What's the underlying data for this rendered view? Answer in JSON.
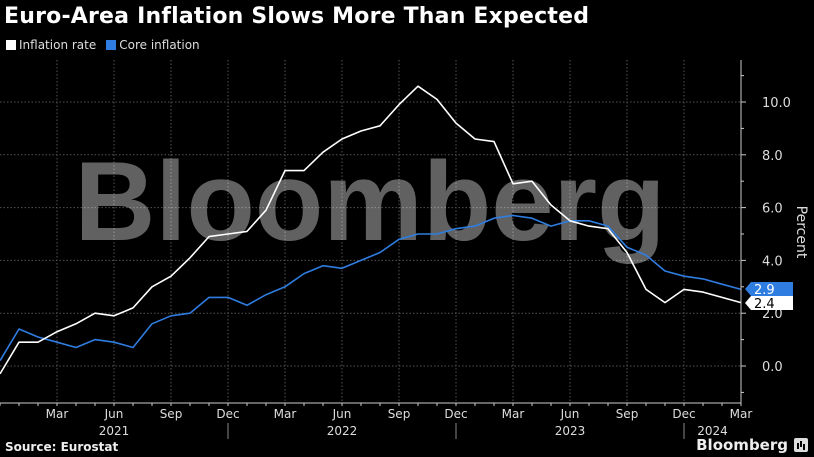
{
  "header": {
    "title": "Euro-Area Inflation Slows More Than Expected"
  },
  "legend": {
    "items": [
      {
        "label": "Inflation rate",
        "color": "#ffffff"
      },
      {
        "label": "Core inflation",
        "color": "#2f7de1"
      }
    ]
  },
  "axis": {
    "y_label": "Percent",
    "y_ticks": [
      "0.0",
      "2.0",
      "4.0",
      "6.0",
      "8.0",
      "10.0"
    ],
    "x_month_ticks": [
      "Mar",
      "Jun",
      "Sep",
      "Dec",
      "Mar",
      "Jun",
      "Sep",
      "Dec",
      "Mar",
      "Jun",
      "Sep",
      "Dec",
      "Mar"
    ],
    "x_year_labels": [
      "2021",
      "2022",
      "2023",
      "2024"
    ]
  },
  "end_labels": {
    "core": "2.9",
    "headline": "2.4"
  },
  "footer": {
    "source": "Source: Eurostat",
    "brand": "Bloomberg"
  },
  "watermark": "Bloomberg",
  "chart_data": {
    "type": "line",
    "title": "Euro-Area Inflation Slows More Than Expected",
    "xlabel": "",
    "ylabel": "Percent",
    "ylim": [
      -0.8,
      11.5
    ],
    "grid": true,
    "legend_position": "top-left",
    "x": [
      "2020-12",
      "2021-01",
      "2021-02",
      "2021-03",
      "2021-04",
      "2021-05",
      "2021-06",
      "2021-07",
      "2021-08",
      "2021-09",
      "2021-10",
      "2021-11",
      "2021-12",
      "2022-01",
      "2022-02",
      "2022-03",
      "2022-04",
      "2022-05",
      "2022-06",
      "2022-07",
      "2022-08",
      "2022-09",
      "2022-10",
      "2022-11",
      "2022-12",
      "2023-01",
      "2023-02",
      "2023-03",
      "2023-04",
      "2023-05",
      "2023-06",
      "2023-07",
      "2023-08",
      "2023-09",
      "2023-10",
      "2023-11",
      "2023-12",
      "2024-01",
      "2024-02",
      "2024-03"
    ],
    "series": [
      {
        "name": "Inflation rate",
        "color": "#ffffff",
        "values": [
          -0.3,
          0.9,
          0.9,
          1.3,
          1.6,
          2.0,
          1.9,
          2.2,
          3.0,
          3.4,
          4.1,
          4.9,
          5.0,
          5.1,
          5.9,
          7.4,
          7.4,
          8.1,
          8.6,
          8.9,
          9.1,
          9.9,
          10.6,
          10.1,
          9.2,
          8.6,
          8.5,
          6.9,
          7.0,
          6.1,
          5.5,
          5.3,
          5.2,
          4.3,
          2.9,
          2.4,
          2.9,
          2.8,
          2.6,
          2.4
        ]
      },
      {
        "name": "Core inflation",
        "color": "#2f7de1",
        "values": [
          0.2,
          1.4,
          1.1,
          0.9,
          0.7,
          1.0,
          0.9,
          0.7,
          1.6,
          1.9,
          2.0,
          2.6,
          2.6,
          2.3,
          2.7,
          3.0,
          3.5,
          3.8,
          3.7,
          4.0,
          4.3,
          4.8,
          5.0,
          5.0,
          5.2,
          5.3,
          5.6,
          5.7,
          5.6,
          5.3,
          5.5,
          5.5,
          5.3,
          4.5,
          4.2,
          3.6,
          3.4,
          3.3,
          3.1,
          2.9
        ]
      }
    ]
  }
}
